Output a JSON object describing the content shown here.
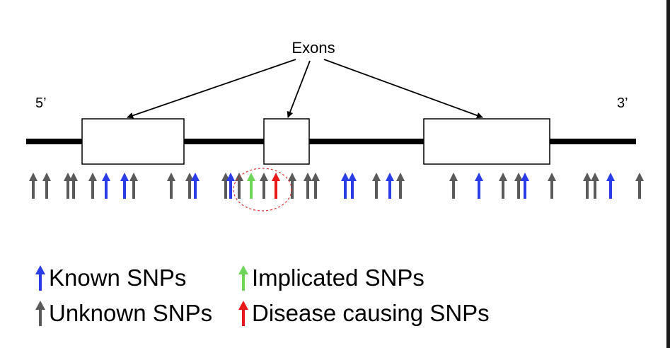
{
  "title": "Exons",
  "five_prime_label": "5’",
  "three_prime_label": "3’",
  "colors": {
    "known": "#2a3de6",
    "unknown": "#5a5a5a",
    "implicated": "#6fd65a",
    "disease": "#e81818",
    "highlight_circle": "#e03030",
    "strand": "#000000"
  },
  "snps": [
    {
      "type": "unknown"
    },
    {
      "type": "unknown"
    },
    {
      "type": "unknown"
    },
    {
      "type": "unknown"
    },
    {
      "type": "unknown"
    },
    {
      "type": "known"
    },
    {
      "type": "known"
    },
    {
      "type": "unknown"
    },
    {
      "type": "unknown"
    },
    {
      "type": "unknown"
    },
    {
      "type": "known"
    },
    {
      "type": "unknown"
    },
    {
      "type": "known"
    },
    {
      "type": "unknown"
    },
    {
      "type": "implicated"
    },
    {
      "type": "unknown"
    },
    {
      "type": "disease"
    },
    {
      "type": "unknown"
    },
    {
      "type": "unknown"
    },
    {
      "type": "unknown"
    },
    {
      "type": "known"
    },
    {
      "type": "known"
    },
    {
      "type": "unknown"
    },
    {
      "type": "known"
    },
    {
      "type": "unknown"
    },
    {
      "type": "unknown"
    },
    {
      "type": "known"
    },
    {
      "type": "unknown"
    },
    {
      "type": "unknown"
    },
    {
      "type": "known"
    },
    {
      "type": "unknown"
    },
    {
      "type": "unknown"
    },
    {
      "type": "unknown"
    },
    {
      "type": "known"
    },
    {
      "type": "unknown"
    }
  ],
  "legend": {
    "known": "Known SNPs",
    "implicated": "Implicated SNPs",
    "unknown": "Unknown SNPs",
    "disease": "Disease causing SNPs"
  }
}
